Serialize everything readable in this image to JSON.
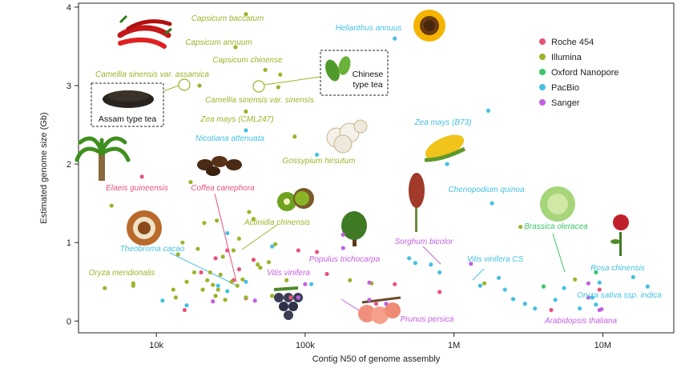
{
  "chart_data": {
    "type": "scatter",
    "xlabel": "Contig N50 of genome assembly",
    "ylabel": "Estimated genome size (Gb)",
    "x_scale": "log",
    "xlim": [
      3000,
      30000000
    ],
    "ylim": [
      -0.15,
      4.05
    ],
    "x_ticks": [
      {
        "value": 10000,
        "label": "10k"
      },
      {
        "value": 100000,
        "label": "100k"
      },
      {
        "value": 1000000,
        "label": "1M"
      },
      {
        "value": 10000000,
        "label": "10M"
      }
    ],
    "y_ticks": [
      0,
      1,
      2,
      3,
      4
    ],
    "legend_position": "top-right",
    "series": [
      {
        "name": "Roche 454",
        "color": "#e8537a",
        "points": [
          [
            8000,
            1.84
          ],
          [
            15500,
            0.14
          ],
          [
            20000,
            0.62
          ],
          [
            25000,
            0.8
          ],
          [
            30000,
            0.9
          ],
          [
            33000,
            0.52
          ],
          [
            36000,
            0.66
          ],
          [
            40000,
            0.29
          ],
          [
            45000,
            0.78
          ],
          [
            80000,
            0.3
          ],
          [
            90000,
            0.9
          ],
          [
            120000,
            0.88
          ],
          [
            140000,
            0.6
          ],
          [
            300000,
            0.22
          ],
          [
            400000,
            0.47
          ],
          [
            800000,
            0.37
          ],
          [
            4500000,
            0.14
          ],
          [
            9500000,
            0.4
          ]
        ]
      },
      {
        "name": "Illumina",
        "color": "#9cb42a",
        "points": [
          [
            4500,
            0.42
          ],
          [
            5000,
            1.47
          ],
          [
            7000,
            0.45
          ],
          [
            13000,
            0.4
          ],
          [
            13500,
            0.3
          ],
          [
            14000,
            0.85
          ],
          [
            15000,
            1.0
          ],
          [
            16000,
            0.5
          ],
          [
            17000,
            1.77
          ],
          [
            18000,
            0.62
          ],
          [
            19000,
            0.92
          ],
          [
            19500,
            3.0
          ],
          [
            20500,
            0.4
          ],
          [
            21000,
            1.25
          ],
          [
            22000,
            0.52
          ],
          [
            23000,
            0.62
          ],
          [
            24000,
            0.46
          ],
          [
            25000,
            0.32
          ],
          [
            25500,
            1.28
          ],
          [
            26000,
            0.4
          ],
          [
            27000,
            0.59
          ],
          [
            28000,
            0.82
          ],
          [
            29000,
            0.27
          ],
          [
            32000,
            0.5
          ],
          [
            33000,
            0.9
          ],
          [
            35000,
            0.45
          ],
          [
            36000,
            1.05
          ],
          [
            38000,
            0.53
          ],
          [
            40000,
            0.3
          ],
          [
            42000,
            1.39
          ],
          [
            45000,
            1.3
          ],
          [
            48000,
            0.72
          ],
          [
            50000,
            0.68
          ],
          [
            54000,
            3.2
          ],
          [
            57000,
            0.75
          ],
          [
            60000,
            0.32
          ],
          [
            63000,
            0.98
          ],
          [
            66000,
            2.98
          ],
          [
            68000,
            3.14
          ],
          [
            75000,
            0.52
          ],
          [
            85000,
            2.35
          ],
          [
            200000,
            0.52
          ],
          [
            280000,
            0.48
          ],
          [
            1600000,
            0.48
          ],
          [
            2800000,
            1.2
          ],
          [
            6500000,
            0.53
          ],
          [
            7000,
            0.48
          ],
          [
            40000,
            2.67
          ],
          [
            40000,
            3.91
          ],
          [
            34000,
            3.49
          ]
        ]
      },
      {
        "name": "Oxford Nanopore",
        "color": "#3bc46a",
        "points": [
          [
            4000000,
            0.44
          ],
          [
            9000000,
            0.62
          ]
        ]
      },
      {
        "name": "PacBio",
        "color": "#46c0e2",
        "points": [
          [
            26000,
            0.45
          ],
          [
            30000,
            0.38
          ],
          [
            40000,
            2.43
          ],
          [
            60000,
            0.95
          ],
          [
            110000,
            0.47
          ],
          [
            120000,
            2.12
          ],
          [
            400000,
            3.6
          ],
          [
            500000,
            0.8
          ],
          [
            550000,
            0.74
          ],
          [
            700000,
            0.72
          ],
          [
            800000,
            0.62
          ],
          [
            900000,
            2.0
          ],
          [
            1500000,
            0.45
          ],
          [
            1700000,
            2.68
          ],
          [
            1800000,
            1.5
          ],
          [
            2000000,
            0.55
          ],
          [
            2200000,
            0.4
          ],
          [
            2500000,
            0.28
          ],
          [
            3000000,
            0.22
          ],
          [
            3500000,
            0.16
          ],
          [
            4800000,
            0.27
          ],
          [
            5500000,
            0.42
          ],
          [
            7000000,
            0.16
          ],
          [
            8500000,
            0.3
          ],
          [
            9000000,
            0.21
          ],
          [
            9500000,
            0.49
          ],
          [
            11000,
            0.26
          ],
          [
            16000,
            0.2
          ],
          [
            30000,
            1.12
          ],
          [
            40000,
            0.5
          ],
          [
            16000000,
            0.56
          ],
          [
            20000000,
            0.44
          ]
        ]
      },
      {
        "name": "Sanger",
        "color": "#c260e0",
        "points": [
          [
            24000,
            0.25
          ],
          [
            46000,
            0.26
          ],
          [
            100000,
            0.47
          ],
          [
            180000,
            1.1
          ],
          [
            180000,
            0.93
          ],
          [
            270000,
            0.49
          ],
          [
            270000,
            0.27
          ],
          [
            1300000,
            0.73
          ],
          [
            8000000,
            0.3
          ],
          [
            8000000,
            0.48
          ],
          [
            9500000,
            0.14
          ],
          [
            9800000,
            0.15
          ],
          [
            350000,
            0.22
          ],
          [
            90000,
            0.3
          ]
        ]
      }
    ],
    "annotations": [
      {
        "text": "Capsicum baccatum",
        "color": "#9cb42a"
      },
      {
        "text": "Capsicum annuum",
        "color": "#9cb42a"
      },
      {
        "text": "Capsicum chinense",
        "color": "#9cb42a"
      },
      {
        "text": "Camellia sinensis var. assamica",
        "color": "#9cb42a"
      },
      {
        "text": "Camellia sinensis var. sinensis",
        "color": "#9cb42a"
      },
      {
        "text": "Helianthus annuus",
        "color": "#46c0e2"
      },
      {
        "text": "Zea mays (CML247)",
        "color": "#9cb42a"
      },
      {
        "text": "Zea mays (B73)",
        "color": "#46c0e2"
      },
      {
        "text": "Nicotiana attenuata",
        "color": "#46c0e2"
      },
      {
        "text": "Gossypium hirsutum",
        "color": "#9cb42a"
      },
      {
        "text": "Elaeis guineensis",
        "color": "#e8537a"
      },
      {
        "text": "Coffea canephora",
        "color": "#e8537a"
      },
      {
        "text": "Actinidia chinensis",
        "color": "#9cb42a"
      },
      {
        "text": "Chenopodium quinoa",
        "color": "#46c0e2"
      },
      {
        "text": "Brassica oleracea",
        "color": "#3bc46a"
      },
      {
        "text": "Sorghum bicolor",
        "color": "#c260e0"
      },
      {
        "text": "Theobroma cacao",
        "color": "#46c0e2"
      },
      {
        "text": "Oryza meridionalis",
        "color": "#9cb42a"
      },
      {
        "text": "Vitis vinifera",
        "color": "#c260e0"
      },
      {
        "text": "Populus trichocarpa",
        "color": "#c260e0"
      },
      {
        "text": "Vitis vinifera CS",
        "color": "#46c0e2"
      },
      {
        "text": "Rosa chinensis",
        "color": "#46c0e2"
      },
      {
        "text": "Oryza sativa ssp. indica",
        "color": "#46c0e2"
      },
      {
        "text": "Prunus persica",
        "color": "#c260e0"
      },
      {
        "text": "Arabidopsis thaliana",
        "color": "#c260e0"
      }
    ],
    "boxes": [
      {
        "lines": [
          "Assam type tea"
        ]
      },
      {
        "lines": [
          "Chinese",
          "type tea"
        ]
      }
    ]
  }
}
